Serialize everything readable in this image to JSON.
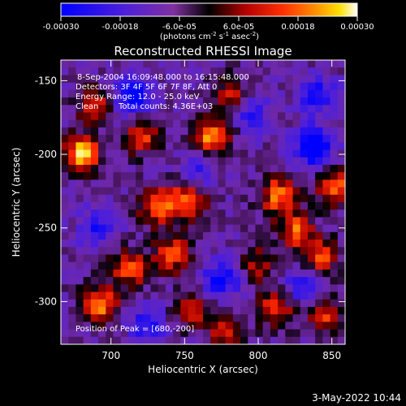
{
  "colorbar": {
    "tick_labels": [
      "-0.00030",
      "-0.00018",
      "-6.0e-05",
      "6.0e-05",
      "0.00018",
      "0.00030"
    ],
    "units_prefix": "(photons cm",
    "units_exp1": "-2",
    "units_mid1": " s",
    "units_exp2": "-1",
    "units_mid2": " asec",
    "units_exp3": "-2",
    "units_suffix": ")"
  },
  "info": {
    "line1": "8-Sep-2004 16:09:48.000 to 16:15:48.000",
    "line2": "Detectors: 3F 4F 5F 6F 7F 8F, Att 0",
    "line3": "Energy Range: 12.0 - 25.0 keV",
    "line4_method": "Clean",
    "line4_counts": "Total counts: 4.36E+03",
    "peak": "Position of Peak = [680,-200]"
  },
  "footer": {
    "date": "3-May-2022 10:44"
  },
  "chart_data": {
    "type": "heatmap",
    "title": "Reconstructed RHESSI Image",
    "xlabel": "Heliocentric X (arcsec)",
    "ylabel": "Heliocentric Y (arcsec)",
    "xlim": [
      666,
      859
    ],
    "ylim": [
      -329,
      -136
    ],
    "x_ticks": [
      700,
      750,
      800,
      850
    ],
    "y_ticks": [
      -150,
      -200,
      -250,
      -300
    ],
    "color_range": [
      -0.0003,
      0.0003
    ],
    "colormap": "blue-purple-black-red-orange-yellow-white",
    "peak_position": [
      680,
      -200
    ],
    "hotspots": [
      {
        "x": 680,
        "y": -200,
        "intensity": 1.0
      },
      {
        "x": 768,
        "y": -188,
        "intensity": 0.9
      },
      {
        "x": 752,
        "y": -232,
        "intensity": 0.75
      },
      {
        "x": 732,
        "y": -236,
        "intensity": 0.75
      },
      {
        "x": 742,
        "y": -268,
        "intensity": 0.7
      },
      {
        "x": 814,
        "y": -228,
        "intensity": 0.8
      },
      {
        "x": 826,
        "y": -252,
        "intensity": 0.7
      },
      {
        "x": 842,
        "y": -270,
        "intensity": 0.65
      },
      {
        "x": 852,
        "y": -222,
        "intensity": 0.7
      },
      {
        "x": 692,
        "y": -302,
        "intensity": 0.85
      },
      {
        "x": 712,
        "y": -278,
        "intensity": 0.7
      },
      {
        "x": 688,
        "y": -166,
        "intensity": 0.55
      },
      {
        "x": 782,
        "y": -160,
        "intensity": 0.55
      },
      {
        "x": 812,
        "y": -305,
        "intensity": 0.6
      },
      {
        "x": 846,
        "y": -310,
        "intensity": 0.55
      },
      {
        "x": 778,
        "y": -320,
        "intensity": 0.5
      },
      {
        "x": 722,
        "y": -188,
        "intensity": 0.6
      },
      {
        "x": 755,
        "y": -305,
        "intensity": 0.55
      },
      {
        "x": 800,
        "y": -275,
        "intensity": 0.45
      }
    ],
    "coldspots": [
      {
        "x": 838,
        "y": -195,
        "intensity": -0.9
      },
      {
        "x": 715,
        "y": -160,
        "intensity": -0.7
      },
      {
        "x": 795,
        "y": -170,
        "intensity": -0.5
      },
      {
        "x": 775,
        "y": -285,
        "intensity": -0.6
      },
      {
        "x": 840,
        "y": -160,
        "intensity": -0.55
      },
      {
        "x": 690,
        "y": -250,
        "intensity": -0.45
      },
      {
        "x": 725,
        "y": -315,
        "intensity": -0.5
      },
      {
        "x": 830,
        "y": -290,
        "intensity": -0.45
      },
      {
        "x": 760,
        "y": -210,
        "intensity": -0.35
      }
    ]
  }
}
